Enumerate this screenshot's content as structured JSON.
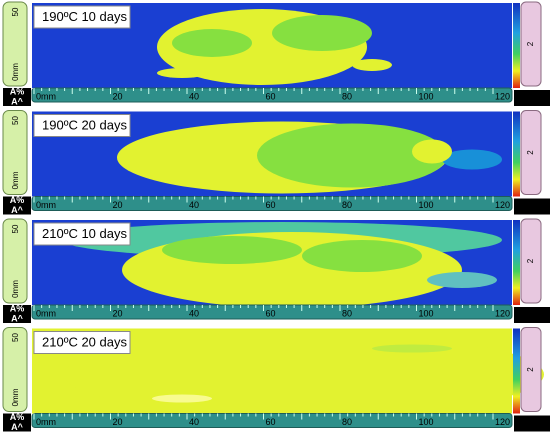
{
  "panels": [
    {
      "label": "190ºC 10 days"
    },
    {
      "label": "190ºC 20 days"
    },
    {
      "label": "210ºC 10 days"
    },
    {
      "label": "210ºC 20 days"
    }
  ],
  "x_ruler": [
    "0mm",
    "20",
    "40",
    "60",
    "80",
    "100",
    "120"
  ],
  "y_ruler": {
    "top": "50",
    "bottom": "0mm"
  },
  "amplitude": {
    "percent": "A%",
    "peak": "A^"
  },
  "color_ruler": "2"
}
